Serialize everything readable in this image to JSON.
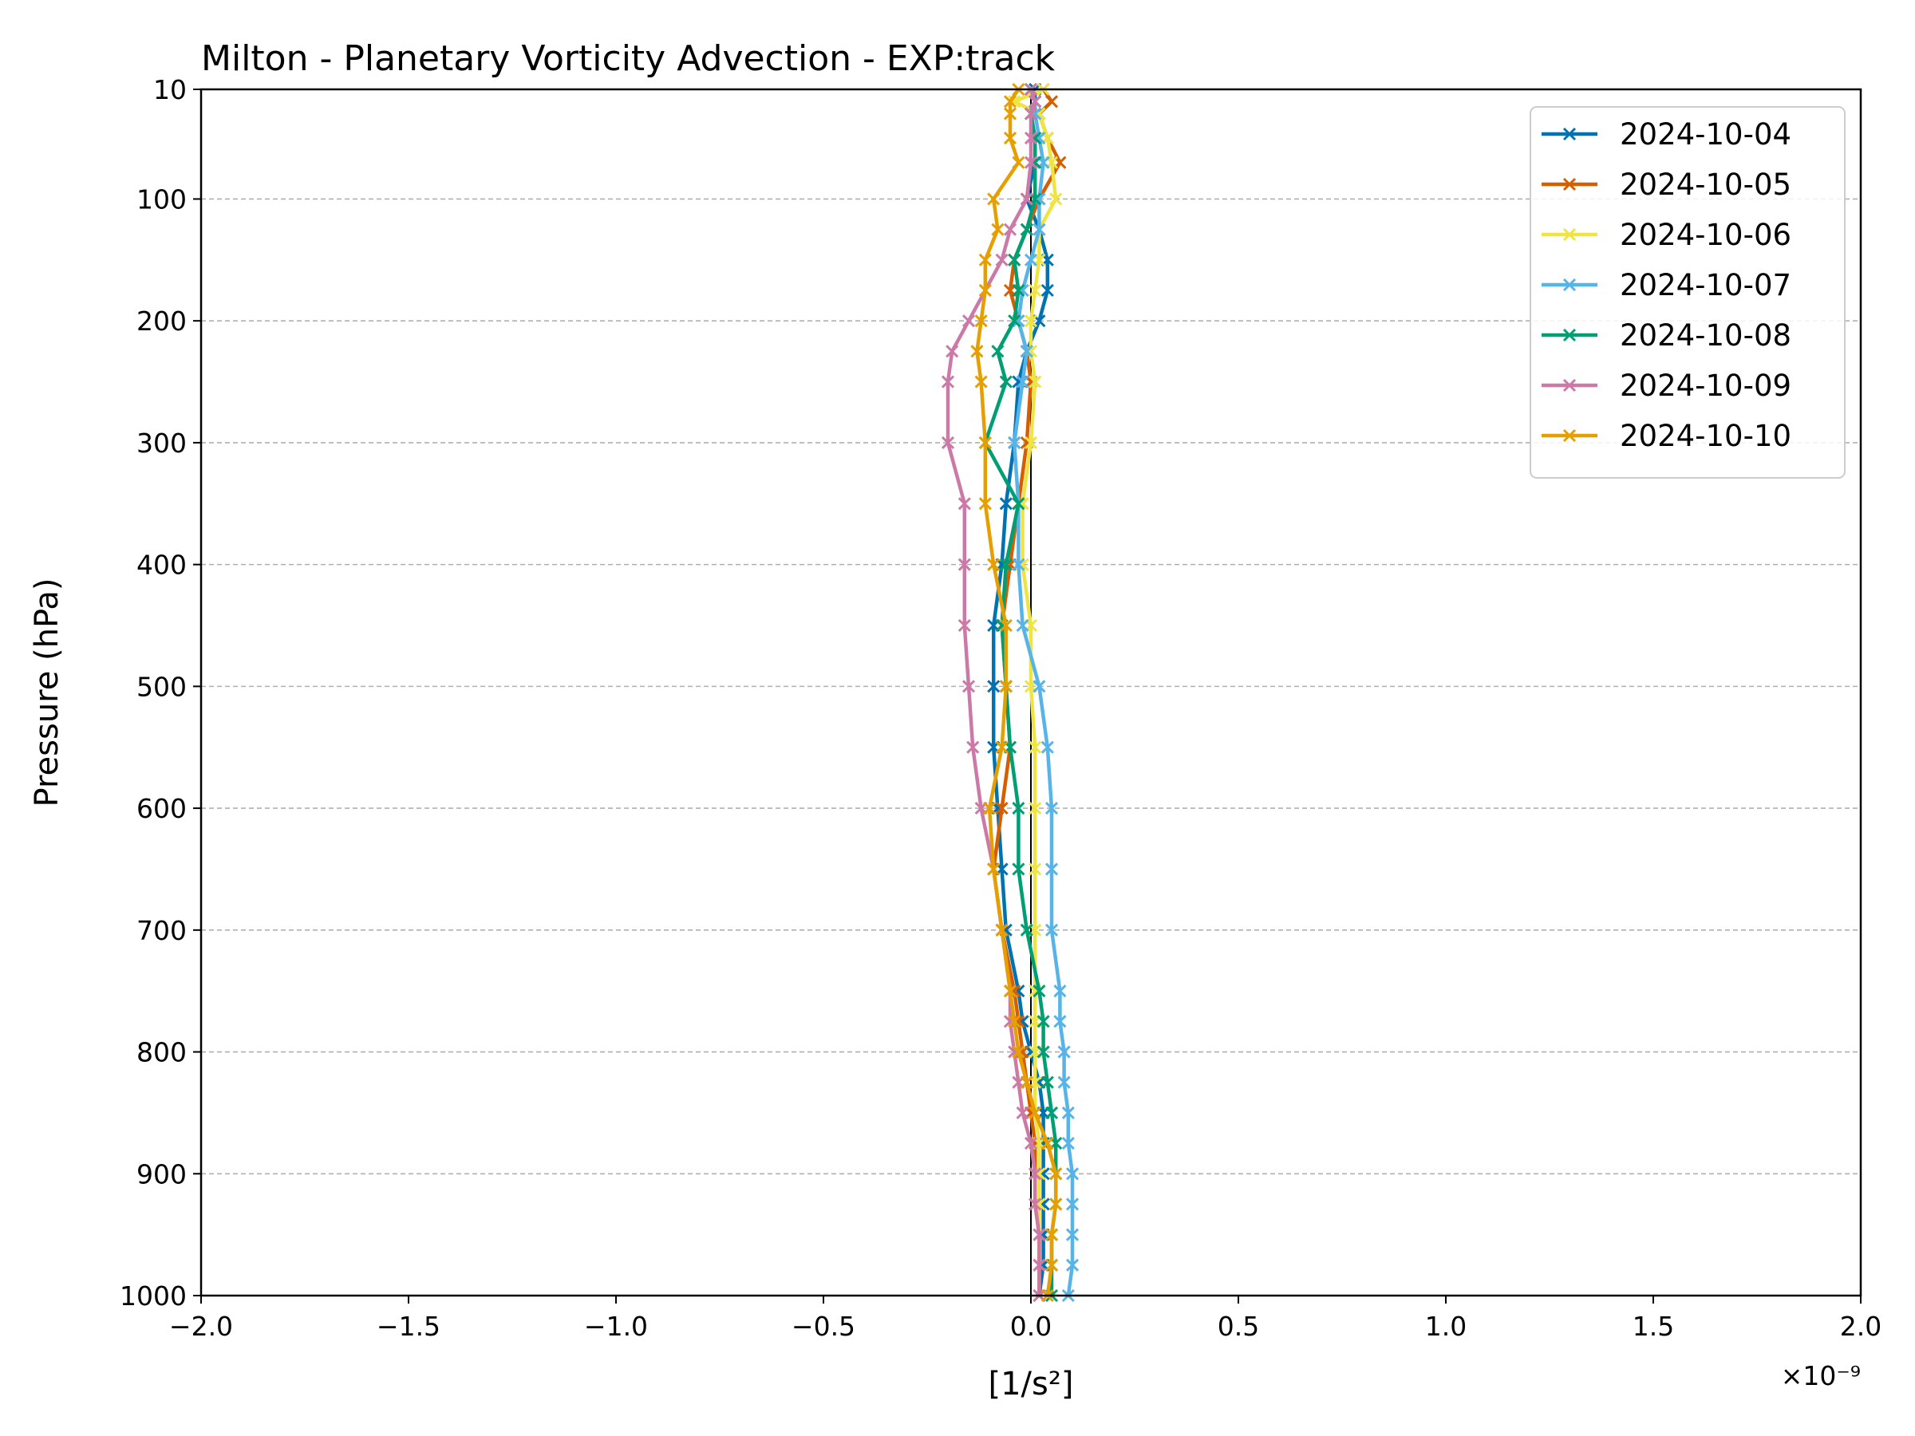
{
  "chart_data": {
    "type": "line",
    "title": "Milton - Planetary Vorticity Advection - EXP:track",
    "xlabel": "[1/s²]",
    "ylabel": "Pressure (hPa)",
    "x_offset_label": "×10⁻⁹",
    "xlim": [
      -2.0,
      2.0
    ],
    "ylim": [
      1000,
      10
    ],
    "y_inverted": true,
    "xticks": [
      "−2.0",
      "−1.5",
      "−1.0",
      "−0.5",
      "0.0",
      "0.5",
      "1.0",
      "1.5",
      "2.0"
    ],
    "yticks": [
      "10",
      "100",
      "200",
      "300",
      "400",
      "500",
      "600",
      "700",
      "800",
      "900",
      "1000"
    ],
    "grid": "horizontal dashed",
    "legend_position": "top-right",
    "marker": "x",
    "pressure_levels": [
      1000,
      975,
      950,
      925,
      900,
      875,
      850,
      825,
      800,
      775,
      750,
      700,
      650,
      600,
      550,
      500,
      450,
      400,
      350,
      300,
      250,
      225,
      200,
      175,
      150,
      125,
      100,
      70,
      50,
      30,
      20,
      10
    ],
    "series": [
      {
        "name": "2024-10-04",
        "color": "#0072b2",
        "values": [
          0.02,
          0.03,
          0.03,
          0.03,
          0.03,
          0.03,
          0.03,
          0.02,
          0.0,
          -0.02,
          -0.03,
          -0.06,
          -0.07,
          -0.08,
          -0.09,
          -0.09,
          -0.09,
          -0.07,
          -0.06,
          -0.04,
          -0.03,
          -0.01,
          0.02,
          0.04,
          0.04,
          0.02,
          -0.01,
          0.01,
          0.01,
          0.0,
          0.01,
          0.01
        ]
      },
      {
        "name": "2024-10-05",
        "color": "#d55e00",
        "values": [
          0.02,
          0.02,
          0.02,
          0.01,
          0.01,
          0.01,
          0.0,
          -0.01,
          -0.02,
          -0.03,
          -0.04,
          -0.07,
          -0.09,
          -0.07,
          -0.05,
          -0.06,
          -0.07,
          -0.05,
          -0.03,
          -0.01,
          0.0,
          -0.01,
          -0.03,
          -0.05,
          -0.04,
          -0.01,
          0.02,
          0.07,
          0.04,
          0.02,
          0.05,
          0.03
        ]
      },
      {
        "name": "2024-10-06",
        "color": "#f0e442",
        "values": [
          0.02,
          0.02,
          0.02,
          0.02,
          0.02,
          0.02,
          0.01,
          0.01,
          0.01,
          0.01,
          0.01,
          0.01,
          0.01,
          0.01,
          0.01,
          0.0,
          0.0,
          -0.02,
          -0.02,
          0.0,
          0.01,
          0.0,
          0.0,
          0.01,
          0.02,
          0.02,
          0.06,
          0.05,
          0.04,
          0.02,
          -0.04,
          0.03
        ]
      },
      {
        "name": "2024-10-07",
        "color": "#56b4e9",
        "values": [
          0.09,
          0.1,
          0.1,
          0.1,
          0.1,
          0.09,
          0.09,
          0.08,
          0.08,
          0.07,
          0.07,
          0.05,
          0.05,
          0.05,
          0.04,
          0.02,
          -0.02,
          -0.03,
          -0.03,
          -0.04,
          -0.02,
          -0.01,
          -0.03,
          -0.02,
          0.0,
          0.02,
          0.02,
          0.03,
          0.02,
          0.01,
          0.01,
          0.0
        ]
      },
      {
        "name": "2024-10-08",
        "color": "#009e73",
        "values": [
          0.05,
          0.05,
          0.05,
          0.06,
          0.06,
          0.06,
          0.05,
          0.04,
          0.03,
          0.03,
          0.02,
          -0.01,
          -0.03,
          -0.03,
          -0.05,
          -0.06,
          -0.07,
          -0.06,
          -0.03,
          -0.11,
          -0.06,
          -0.08,
          -0.04,
          -0.03,
          -0.04,
          -0.01,
          0.01,
          0.01,
          0.01,
          0.0,
          0.01,
          0.0
        ]
      },
      {
        "name": "2024-10-09",
        "color": "#cc79a7",
        "values": [
          0.02,
          0.02,
          0.02,
          0.01,
          0.01,
          0.0,
          -0.02,
          -0.03,
          -0.04,
          -0.05,
          -0.05,
          -0.07,
          -0.09,
          -0.12,
          -0.14,
          -0.15,
          -0.16,
          -0.16,
          -0.16,
          -0.2,
          -0.2,
          -0.19,
          -0.15,
          -0.11,
          -0.07,
          -0.05,
          -0.01,
          0.0,
          0.0,
          0.0,
          0.01,
          0.0
        ]
      },
      {
        "name": "2024-10-10",
        "color": "#e69f00",
        "values": [
          0.04,
          0.05,
          0.05,
          0.06,
          0.06,
          0.04,
          0.01,
          -0.01,
          -0.03,
          -0.04,
          -0.05,
          -0.07,
          -0.09,
          -0.1,
          -0.07,
          -0.06,
          -0.06,
          -0.09,
          -0.11,
          -0.11,
          -0.12,
          -0.13,
          -0.12,
          -0.11,
          -0.11,
          -0.08,
          -0.09,
          -0.03,
          -0.05,
          -0.05,
          -0.05,
          -0.03
        ]
      }
    ]
  }
}
